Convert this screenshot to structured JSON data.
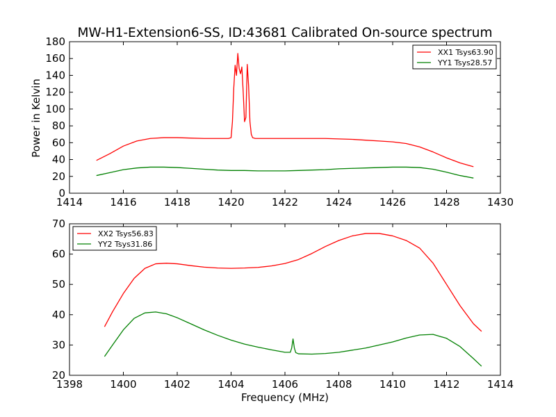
{
  "chart_data": [
    {
      "type": "line",
      "title": "MW-H1-Extension6-SS, ID:43681 Calibrated On-source spectrum",
      "xlabel": "",
      "ylabel": "Power in Kelvin",
      "xlim": [
        1414,
        1430
      ],
      "ylim": [
        0,
        180
      ],
      "xticks": [
        1414,
        1416,
        1418,
        1420,
        1422,
        1424,
        1426,
        1428,
        1430
      ],
      "yticks": [
        0,
        20,
        40,
        60,
        80,
        100,
        120,
        140,
        160,
        180
      ],
      "legend_position": "top-right",
      "grid": false,
      "series": [
        {
          "name": "XX1 Tsys63.90",
          "color": "#ff0000",
          "x": [
            1415.0,
            1415.5,
            1416.0,
            1416.5,
            1417.0,
            1417.5,
            1418.0,
            1418.5,
            1419.0,
            1419.5,
            1419.9,
            1420.0,
            1420.05,
            1420.1,
            1420.15,
            1420.2,
            1420.25,
            1420.3,
            1420.35,
            1420.4,
            1420.45,
            1420.5,
            1420.55,
            1420.6,
            1420.65,
            1420.7,
            1420.75,
            1420.8,
            1420.9,
            1421.0,
            1421.5,
            1422.0,
            1422.5,
            1423.0,
            1423.5,
            1424.0,
            1424.5,
            1425.0,
            1425.5,
            1426.0,
            1426.5,
            1427.0,
            1427.5,
            1428.0,
            1428.5,
            1429.0
          ],
          "y": [
            39,
            47,
            56,
            62,
            65,
            66,
            66,
            65.5,
            65,
            65,
            65,
            66,
            85,
            125,
            152,
            140,
            166,
            148,
            142,
            150,
            120,
            85,
            90,
            153,
            128,
            85,
            70,
            66,
            65,
            65,
            65,
            65,
            65,
            65,
            65,
            64.5,
            64,
            63,
            62,
            61,
            59,
            55,
            49,
            42,
            36,
            31.5
          ]
        },
        {
          "name": "YY1 Tsys28.57",
          "color": "#008000",
          "x": [
            1415.0,
            1415.5,
            1416.0,
            1416.5,
            1417.0,
            1417.5,
            1418.0,
            1418.5,
            1419.0,
            1419.5,
            1420.0,
            1420.5,
            1421.0,
            1421.5,
            1422.0,
            1422.5,
            1423.0,
            1423.5,
            1424.0,
            1424.5,
            1425.0,
            1425.5,
            1426.0,
            1426.5,
            1427.0,
            1427.5,
            1428.0,
            1428.5,
            1429.0
          ],
          "y": [
            21,
            24.5,
            28,
            30,
            31,
            31,
            30.5,
            29.5,
            28.5,
            27.5,
            27,
            27,
            26.5,
            26.5,
            26.5,
            27,
            27.5,
            28,
            29,
            29.5,
            30,
            30.5,
            31,
            31,
            30.5,
            28.5,
            25,
            21,
            18
          ]
        }
      ]
    },
    {
      "type": "line",
      "title": "",
      "xlabel": "Frequency (MHz)",
      "ylabel": "",
      "xlim": [
        1398,
        1414
      ],
      "ylim": [
        20,
        70
      ],
      "xticks": [
        1398,
        1400,
        1402,
        1404,
        1406,
        1408,
        1410,
        1412,
        1414
      ],
      "yticks": [
        20,
        30,
        40,
        50,
        60,
        70
      ],
      "legend_position": "top-left",
      "grid": false,
      "series": [
        {
          "name": "XX2 Tsys56.83",
          "color": "#ff0000",
          "x": [
            1399.3,
            1399.6,
            1400.0,
            1400.4,
            1400.8,
            1401.2,
            1401.6,
            1402.0,
            1402.5,
            1403.0,
            1403.5,
            1404.0,
            1404.5,
            1405.0,
            1405.5,
            1406.0,
            1406.5,
            1407.0,
            1407.5,
            1408.0,
            1408.5,
            1409.0,
            1409.5,
            1410.0,
            1410.5,
            1411.0,
            1411.5,
            1412.0,
            1412.5,
            1413.0,
            1413.3
          ],
          "y": [
            36,
            41,
            47,
            52,
            55.3,
            56.8,
            57,
            56.8,
            56.2,
            55.7,
            55.4,
            55.3,
            55.4,
            55.6,
            56.1,
            56.9,
            58.2,
            60.2,
            62.5,
            64.5,
            66,
            66.8,
            66.8,
            66,
            64.5,
            62,
            57,
            50,
            43,
            37,
            34.5
          ]
        },
        {
          "name": "YY2 Tsys31.86",
          "color": "#008000",
          "x": [
            1399.3,
            1399.6,
            1400.0,
            1400.4,
            1400.8,
            1401.2,
            1401.6,
            1402.0,
            1402.5,
            1403.0,
            1403.5,
            1404.0,
            1404.5,
            1405.0,
            1405.5,
            1406.0,
            1406.2,
            1406.25,
            1406.3,
            1406.35,
            1406.4,
            1406.5,
            1407.0,
            1407.5,
            1408.0,
            1408.5,
            1409.0,
            1409.5,
            1410.0,
            1410.5,
            1411.0,
            1411.5,
            1412.0,
            1412.5,
            1413.0,
            1413.3
          ],
          "y": [
            26.2,
            30,
            35,
            38.8,
            40.6,
            40.9,
            40.3,
            39,
            37,
            35,
            33.2,
            31.6,
            30.3,
            29.3,
            28.4,
            27.6,
            27.6,
            29,
            32,
            29,
            27.5,
            27.1,
            27,
            27.2,
            27.6,
            28.3,
            29,
            30,
            31,
            32.3,
            33.3,
            33.5,
            32.2,
            29.5,
            25.5,
            23
          ]
        }
      ]
    }
  ]
}
